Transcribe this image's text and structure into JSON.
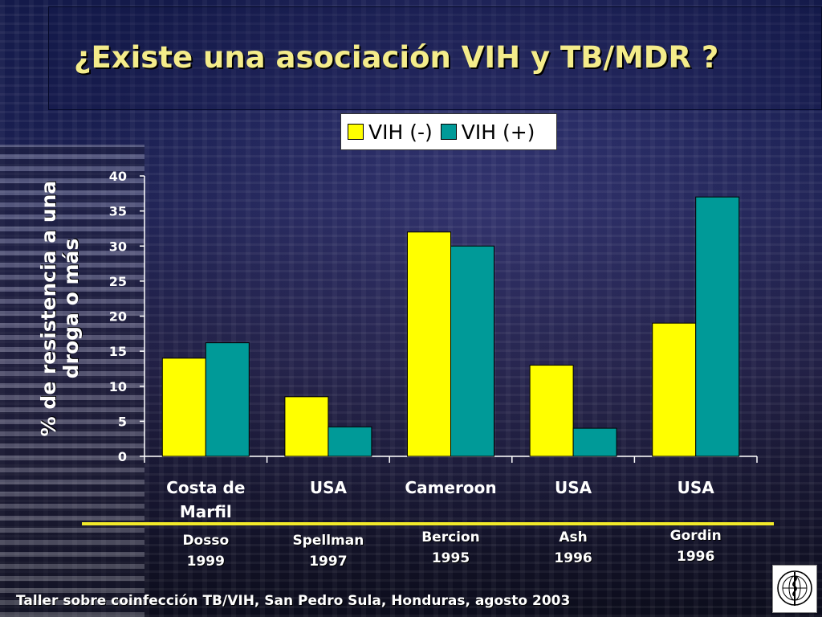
{
  "title": "¿Existe una asociación VIH y TB/MDR ?",
  "footer": "Taller sobre coinfección TB/VIH, San Pedro Sula, Honduras, agosto 2003",
  "logo_name": "who-emblem-icon",
  "chart_data": {
    "type": "bar",
    "ylabel_line1": "% de resistencia a una",
    "ylabel_line2": "droga o más",
    "ylim": [
      0,
      40
    ],
    "yticks": [
      "0",
      "5",
      "10",
      "15",
      "20",
      "25",
      "30",
      "35",
      "40"
    ],
    "categories": [
      "Costa de Marfil",
      "USA",
      "Cameroon",
      "USA",
      "USA"
    ],
    "category_lines": [
      [
        "Costa de",
        "Marfil"
      ],
      [
        "USA"
      ],
      [
        "Cameroon"
      ],
      [
        "USA"
      ],
      [
        "USA"
      ]
    ],
    "series": [
      {
        "name": "VIH (-)",
        "color": "#ffff00",
        "values": [
          14,
          8.5,
          32,
          13,
          19
        ]
      },
      {
        "name": "VIH (+)",
        "color": "#009a98",
        "values": [
          16.2,
          4.2,
          30,
          4,
          37
        ]
      }
    ],
    "sources": [
      {
        "author": "Dosso",
        "year": "1999"
      },
      {
        "author": "Spellman",
        "year": "1997"
      },
      {
        "author": "Bercion",
        "year": "1995"
      },
      {
        "author": "Ash",
        "year": "1996"
      },
      {
        "author": "Gordin",
        "year": "1996"
      }
    ],
    "legend_position": "top"
  },
  "colors": {
    "title": "#f4ec8a",
    "axis": "#ffffff",
    "underline": "#f2ea2a"
  }
}
